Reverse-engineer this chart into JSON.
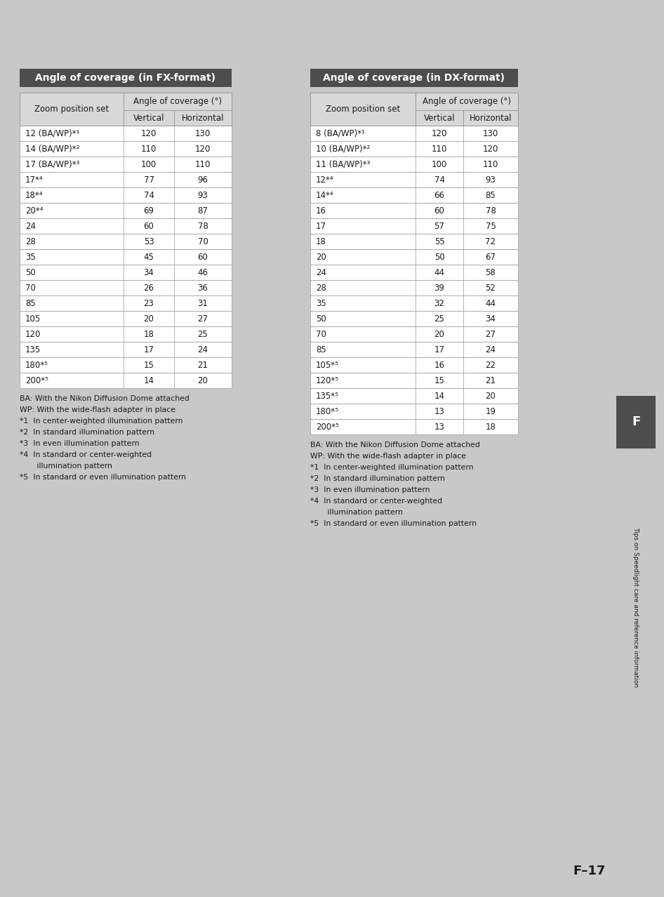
{
  "page_bg": "#c8c8c8",
  "content_bg": "#ffffff",
  "header_bg": "#4d4d4d",
  "header_text_color": "#ffffff",
  "table_header_bg": "#d8d8d8",
  "table_border_color": "#999999",
  "text_color": "#1a1a1a",
  "fx_title": "Angle of coverage (in FX-format)",
  "dx_title": "Angle of coverage (in DX-format)",
  "col_header1": "Zoom position set",
  "col_header2": "Angle of coverage (°)",
  "col_header3": "Vertical",
  "col_header4": "Horizontal",
  "fx_rows": [
    [
      "12 (BA/WP)*¹",
      "120",
      "130"
    ],
    [
      "14 (BA/WP)*²",
      "110",
      "120"
    ],
    [
      "17 (BA/WP)*³",
      "100",
      "110"
    ],
    [
      "17*⁴",
      "77",
      "96"
    ],
    [
      "18*⁴",
      "74",
      "93"
    ],
    [
      "20*⁴",
      "69",
      "87"
    ],
    [
      "24",
      "60",
      "78"
    ],
    [
      "28",
      "53",
      "70"
    ],
    [
      "35",
      "45",
      "60"
    ],
    [
      "50",
      "34",
      "46"
    ],
    [
      "70",
      "26",
      "36"
    ],
    [
      "85",
      "23",
      "31"
    ],
    [
      "105",
      "20",
      "27"
    ],
    [
      "120",
      "18",
      "25"
    ],
    [
      "135",
      "17",
      "24"
    ],
    [
      "180*⁵",
      "15",
      "21"
    ],
    [
      "200*⁵",
      "14",
      "20"
    ]
  ],
  "dx_rows": [
    [
      "8 (BA/WP)*¹",
      "120",
      "130"
    ],
    [
      "10 (BA/WP)*²",
      "110",
      "120"
    ],
    [
      "11 (BA/WP)*³",
      "100",
      "110"
    ],
    [
      "12*⁴",
      "74",
      "93"
    ],
    [
      "14*⁴",
      "66",
      "85"
    ],
    [
      "16",
      "60",
      "78"
    ],
    [
      "17",
      "57",
      "75"
    ],
    [
      "18",
      "55",
      "72"
    ],
    [
      "20",
      "50",
      "67"
    ],
    [
      "24",
      "44",
      "58"
    ],
    [
      "28",
      "39",
      "52"
    ],
    [
      "35",
      "32",
      "44"
    ],
    [
      "50",
      "25",
      "34"
    ],
    [
      "70",
      "20",
      "27"
    ],
    [
      "85",
      "17",
      "24"
    ],
    [
      "105*⁵",
      "16",
      "22"
    ],
    [
      "120*⁵",
      "15",
      "21"
    ],
    [
      "135*⁵",
      "14",
      "20"
    ],
    [
      "180*⁵",
      "13",
      "19"
    ],
    [
      "200*⁵",
      "13",
      "18"
    ]
  ],
  "fx_footnotes": [
    "BA: With the Nikon Diffusion Dome attached",
    "WP: With the wide-flash adapter in place",
    "*1  In center-weighted illumination pattern",
    "*2  In standard illumination pattern",
    "*3  In even illumination pattern",
    "*4  In standard or center-weighted",
    "       illumination pattern",
    "*5  In standard or even illumination pattern"
  ],
  "dx_footnotes": [
    "BA: With the Nikon Diffusion Dome attached",
    "WP: With the wide-flash adapter in place",
    "*1  In center-weighted illumination pattern",
    "*2  In standard illumination pattern",
    "*3  In even illumination pattern",
    "*4  In standard or center-weighted",
    "       illumination pattern",
    "*5  In standard or even illumination pattern"
  ],
  "page_label": "F–17",
  "side_label": "Tips on Speedlight care and reference information",
  "f_label": "F",
  "fig_width": 9.54,
  "fig_height": 13.12,
  "dpi": 100
}
